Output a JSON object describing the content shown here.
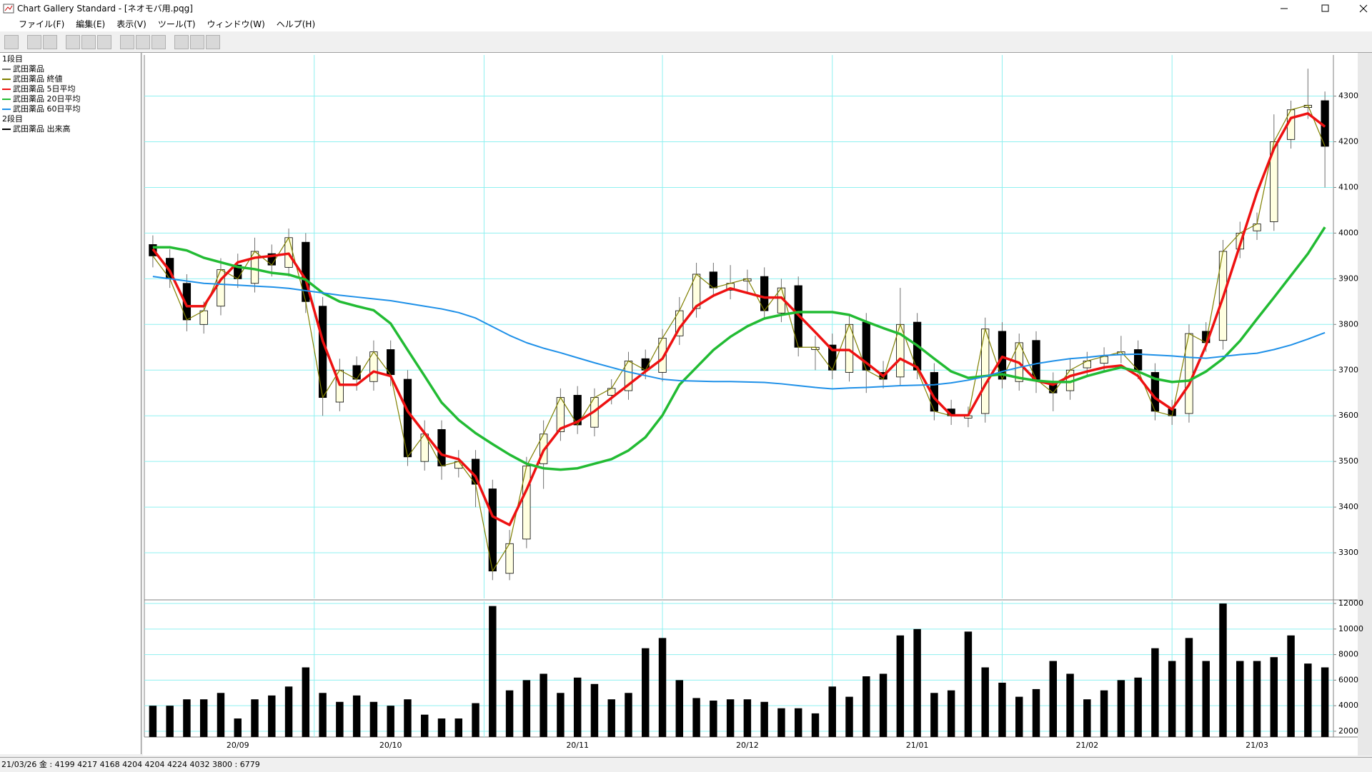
{
  "window": {
    "title": "Chart Gallery Standard - [ネオモバ用.pqg]",
    "menu": [
      "ファイル(F)",
      "編集(E)",
      "表示(V)",
      "ツール(T)",
      "ウィンドウ(W)",
      "ヘルプ(H)"
    ],
    "status": "21/03/26 金 : 4199 4217 4168 4204  4204 4224 4032 3800 : 6779"
  },
  "chart_data": [
    {
      "type": "candlestick",
      "pane_label": "1段目",
      "categories": [
        null,
        null,
        null,
        null,
        null,
        "20/09",
        null,
        null,
        null,
        null,
        null,
        null,
        null,
        null,
        "20/10",
        null,
        null,
        null,
        null,
        null,
        null,
        null,
        null,
        null,
        null,
        "20/11",
        null,
        null,
        null,
        null,
        null,
        null,
        null,
        null,
        null,
        "20/12",
        null,
        null,
        null,
        null,
        null,
        null,
        null,
        null,
        null,
        "21/01",
        null,
        null,
        null,
        null,
        null,
        null,
        null,
        null,
        null,
        "21/02",
        null,
        null,
        null,
        null,
        null,
        null,
        null,
        null,
        null,
        "21/03",
        null,
        null,
        null,
        null
      ],
      "candles": {
        "name": "武田薬品",
        "color": "#707070",
        "up_color": "#ffffe0",
        "down_color": "#000000",
        "open": [
          3975,
          3945,
          3890,
          3800,
          3840,
          3930,
          3890,
          3955,
          3925,
          3980,
          3840,
          3630,
          3710,
          3675,
          3745,
          3680,
          3500,
          3570,
          3485,
          3505,
          3440,
          3255,
          3330,
          3495,
          3565,
          3645,
          3575,
          3645,
          3655,
          3725,
          3695,
          3775,
          3835,
          3915,
          3875,
          3895,
          3905,
          3825,
          3885,
          3745,
          3755,
          3695,
          3805,
          3695,
          3685,
          3805,
          3695,
          3615,
          3595,
          3605,
          3785,
          3675,
          3765,
          3675,
          3655,
          3705,
          3715,
          3735,
          3745,
          3695,
          3615,
          3605,
          3785,
          3765,
          3965,
          4005,
          4025,
          4205,
          4275,
          4290
        ],
        "high": [
          3995,
          3965,
          3910,
          3850,
          3945,
          3955,
          3990,
          3975,
          4010,
          4000,
          3860,
          3725,
          3730,
          3765,
          3765,
          3700,
          3590,
          3590,
          3525,
          3525,
          3460,
          3350,
          3510,
          3590,
          3660,
          3665,
          3660,
          3680,
          3740,
          3745,
          3790,
          3860,
          3935,
          3935,
          3930,
          3920,
          3925,
          3900,
          3905,
          3775,
          3780,
          3820,
          3825,
          3720,
          3880,
          3825,
          3715,
          3635,
          3620,
          3815,
          3805,
          3780,
          3785,
          3695,
          3725,
          3740,
          3750,
          3775,
          3765,
          3715,
          3635,
          3800,
          3805,
          3985,
          4025,
          4045,
          4260,
          4290,
          4360,
          4310
        ],
        "low": [
          3925,
          3880,
          3785,
          3780,
          3820,
          3880,
          3870,
          3905,
          3905,
          3825,
          3600,
          3610,
          3655,
          3655,
          3665,
          3490,
          3480,
          3460,
          3465,
          3400,
          3240,
          3240,
          3310,
          3440,
          3545,
          3560,
          3555,
          3625,
          3635,
          3680,
          3675,
          3755,
          3815,
          3860,
          3855,
          3870,
          3810,
          3805,
          3730,
          3700,
          3680,
          3675,
          3650,
          3660,
          3665,
          3680,
          3590,
          3580,
          3575,
          3585,
          3660,
          3655,
          3650,
          3610,
          3635,
          3685,
          3695,
          3715,
          3680,
          3590,
          3580,
          3585,
          3740,
          3745,
          3945,
          3985,
          4005,
          4185,
          4250,
          4100
        ]
      },
      "series": [
        {
          "name": "武田薬品 終値",
          "color": "#808000",
          "values": [
            3950,
            3900,
            3810,
            3830,
            3920,
            3900,
            3960,
            3930,
            3990,
            3850,
            3640,
            3700,
            3680,
            3740,
            3690,
            3510,
            3560,
            3490,
            3500,
            3450,
            3260,
            3320,
            3490,
            3560,
            3640,
            3580,
            3640,
            3660,
            3720,
            3700,
            3770,
            3830,
            3910,
            3880,
            3890,
            3900,
            3830,
            3880,
            3750,
            3750,
            3700,
            3800,
            3700,
            3680,
            3800,
            3700,
            3610,
            3600,
            3600,
            3790,
            3680,
            3760,
            3680,
            3650,
            3700,
            3720,
            3730,
            3740,
            3700,
            3610,
            3600,
            3780,
            3760,
            3960,
            4000,
            4020,
            4200,
            4270,
            4280,
            4190
          ]
        },
        {
          "name": "武田薬品 5日平均",
          "color": "#ee1111",
          "values": [
            3965,
            3917,
            3840,
            3840,
            3898,
            3936,
            3946,
            3950,
            3955,
            3898,
            3764,
            3668,
            3668,
            3697,
            3687,
            3610,
            3562,
            3515,
            3505,
            3467,
            3380,
            3361,
            3438,
            3524,
            3572,
            3587,
            3610,
            3639,
            3668,
            3697,
            3725,
            3792,
            3840,
            3863,
            3879,
            3869,
            3859,
            3859,
            3821,
            3783,
            3744,
            3744,
            3716,
            3687,
            3725,
            3706,
            3639,
            3601,
            3601,
            3668,
            3729,
            3716,
            3677,
            3668,
            3687,
            3697,
            3706,
            3710,
            3687,
            3639,
            3614,
            3668,
            3754,
            3859,
            3974,
            4089,
            4185,
            4252,
            4262,
            4233
          ]
        },
        {
          "name": "武田薬品 20日平均",
          "color": "#22bb33",
          "values": [
            3969,
            3969,
            3962,
            3946,
            3936,
            3926,
            3921,
            3913,
            3909,
            3898,
            3869,
            3850,
            3840,
            3831,
            3802,
            3744,
            3687,
            3629,
            3591,
            3562,
            3538,
            3515,
            3495,
            3485,
            3482,
            3485,
            3495,
            3505,
            3524,
            3553,
            3601,
            3668,
            3706,
            3744,
            3773,
            3796,
            3813,
            3821,
            3827,
            3827,
            3827,
            3821,
            3806,
            3792,
            3779,
            3754,
            3725,
            3697,
            3683,
            3687,
            3691,
            3683,
            3677,
            3674,
            3674,
            3687,
            3697,
            3706,
            3697,
            3681,
            3674,
            3677,
            3697,
            3725,
            3764,
            3812,
            3859,
            3907,
            3955,
            4013
          ]
        },
        {
          "name": "武田薬品 60日平均",
          "color": "#1e90e8",
          "values": [
            3905,
            3900,
            3895,
            3890,
            3888,
            3886,
            3884,
            3882,
            3879,
            3874,
            3869,
            3864,
            3860,
            3856,
            3852,
            3846,
            3840,
            3834,
            3826,
            3814,
            3795,
            3776,
            3760,
            3748,
            3738,
            3727,
            3716,
            3706,
            3696,
            3688,
            3680,
            3677,
            3676,
            3675,
            3675,
            3674,
            3673,
            3670,
            3666,
            3662,
            3659,
            3661,
            3662,
            3664,
            3666,
            3667,
            3668,
            3672,
            3678,
            3686,
            3697,
            3706,
            3714,
            3720,
            3725,
            3728,
            3732,
            3734,
            3735,
            3733,
            3731,
            3728,
            3726,
            3730,
            3734,
            3737,
            3745,
            3755,
            3768,
            3782
          ]
        }
      ],
      "ylim": [
        3200,
        4390
      ],
      "yticks": [
        3300,
        3400,
        3500,
        3600,
        3700,
        3800,
        3900,
        4000,
        4100,
        4200,
        4300
      ],
      "grid": true
    },
    {
      "type": "bar",
      "pane_label": "2段目",
      "series": [
        {
          "name": "武田薬品 出来高",
          "color": "#000000",
          "values": [
            4000,
            4000,
            4500,
            4500,
            5000,
            3000,
            4500,
            4800,
            5500,
            7000,
            5000,
            4300,
            4800,
            4300,
            4000,
            4500,
            3300,
            3000,
            3000,
            4200,
            11800,
            5200,
            6000,
            6500,
            5000,
            6200,
            5700,
            4500,
            5000,
            8500,
            9300,
            6000,
            4600,
            4400,
            4500,
            4500,
            4300,
            3800,
            3800,
            3400,
            5500,
            4700,
            6300,
            6500,
            9500,
            10000,
            5000,
            5200,
            9800,
            7000,
            5800,
            4700,
            5300,
            7500,
            6500,
            4500,
            5200,
            6000,
            6200,
            8500,
            7500,
            9300,
            7500,
            12000,
            7500,
            7500,
            7800,
            9500,
            7300,
            7000
          ]
        }
      ],
      "ylim": [
        1550,
        12170
      ],
      "yticks": [
        2000,
        4000,
        6000,
        8000,
        10000,
        12000
      ],
      "grid": true
    }
  ]
}
